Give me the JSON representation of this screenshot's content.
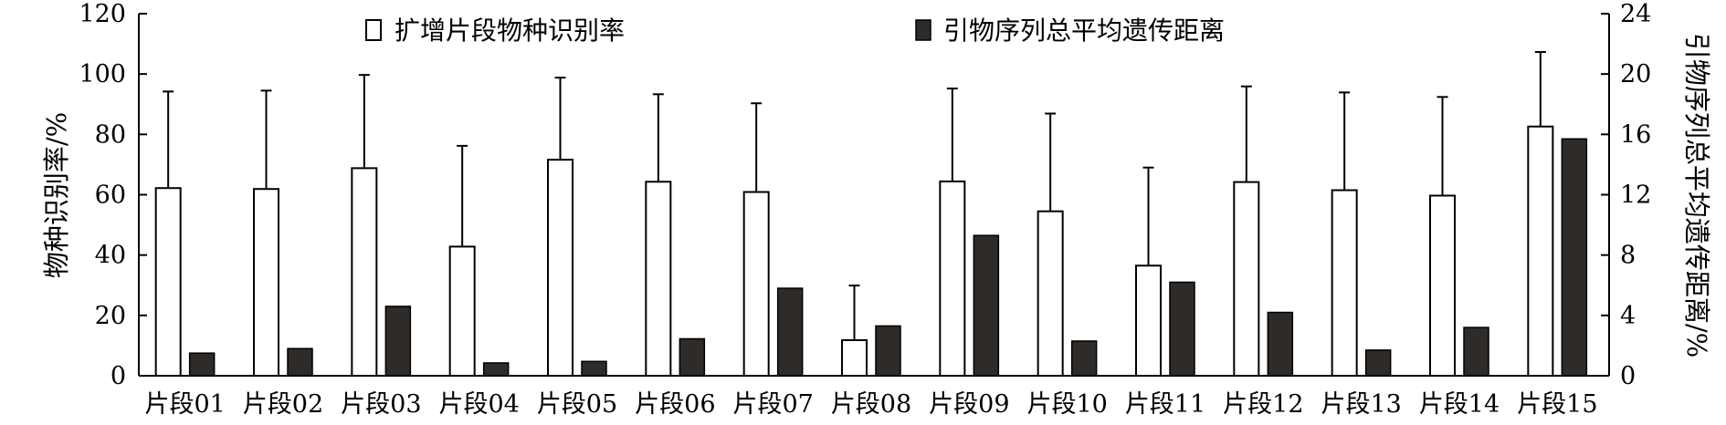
{
  "chart_data": {
    "type": "bar",
    "categories": [
      "片段01",
      "片段02",
      "片段03",
      "片段04",
      "片段05",
      "片段06",
      "片段07",
      "片段08",
      "片段09",
      "片段10",
      "片段11",
      "片段12",
      "片段13",
      "片段14",
      "片段15"
    ],
    "series": [
      {
        "name": "扩增片段物种识别率",
        "axis": "left",
        "style": "open",
        "values": [
          62.2,
          61.9,
          68.8,
          42.8,
          71.6,
          64.3,
          60.9,
          11.8,
          64.4,
          54.5,
          36.5,
          64.2,
          61.5,
          59.7,
          82.6
        ],
        "error_upper": [
          94.2,
          94.5,
          99.7,
          76.2,
          98.8,
          93.3,
          90.3,
          29.9,
          95.2,
          86.9,
          69.0,
          95.9,
          93.9,
          92.4,
          107.3
        ]
      },
      {
        "name": "引物序列总平均遗传距离",
        "axis": "right",
        "style": "filled",
        "color": "#2e2b28",
        "values": [
          1.5,
          1.8,
          4.6,
          0.85,
          0.95,
          2.45,
          5.8,
          3.3,
          9.3,
          2.3,
          6.2,
          4.2,
          1.7,
          3.2,
          15.7
        ]
      }
    ],
    "ylabel": "物种识别率/%",
    "ylim": [
      0,
      120
    ],
    "yticks": [
      "0",
      "20",
      "40",
      "60",
      "80",
      "100",
      "120"
    ],
    "y2label": "引物序列总平均遗传距离/%",
    "y2lim": [
      0,
      24
    ],
    "y2ticks": [
      "0",
      "4",
      "8",
      "12",
      "16",
      "20",
      "24"
    ],
    "legend_position": "top",
    "grid": false
  }
}
